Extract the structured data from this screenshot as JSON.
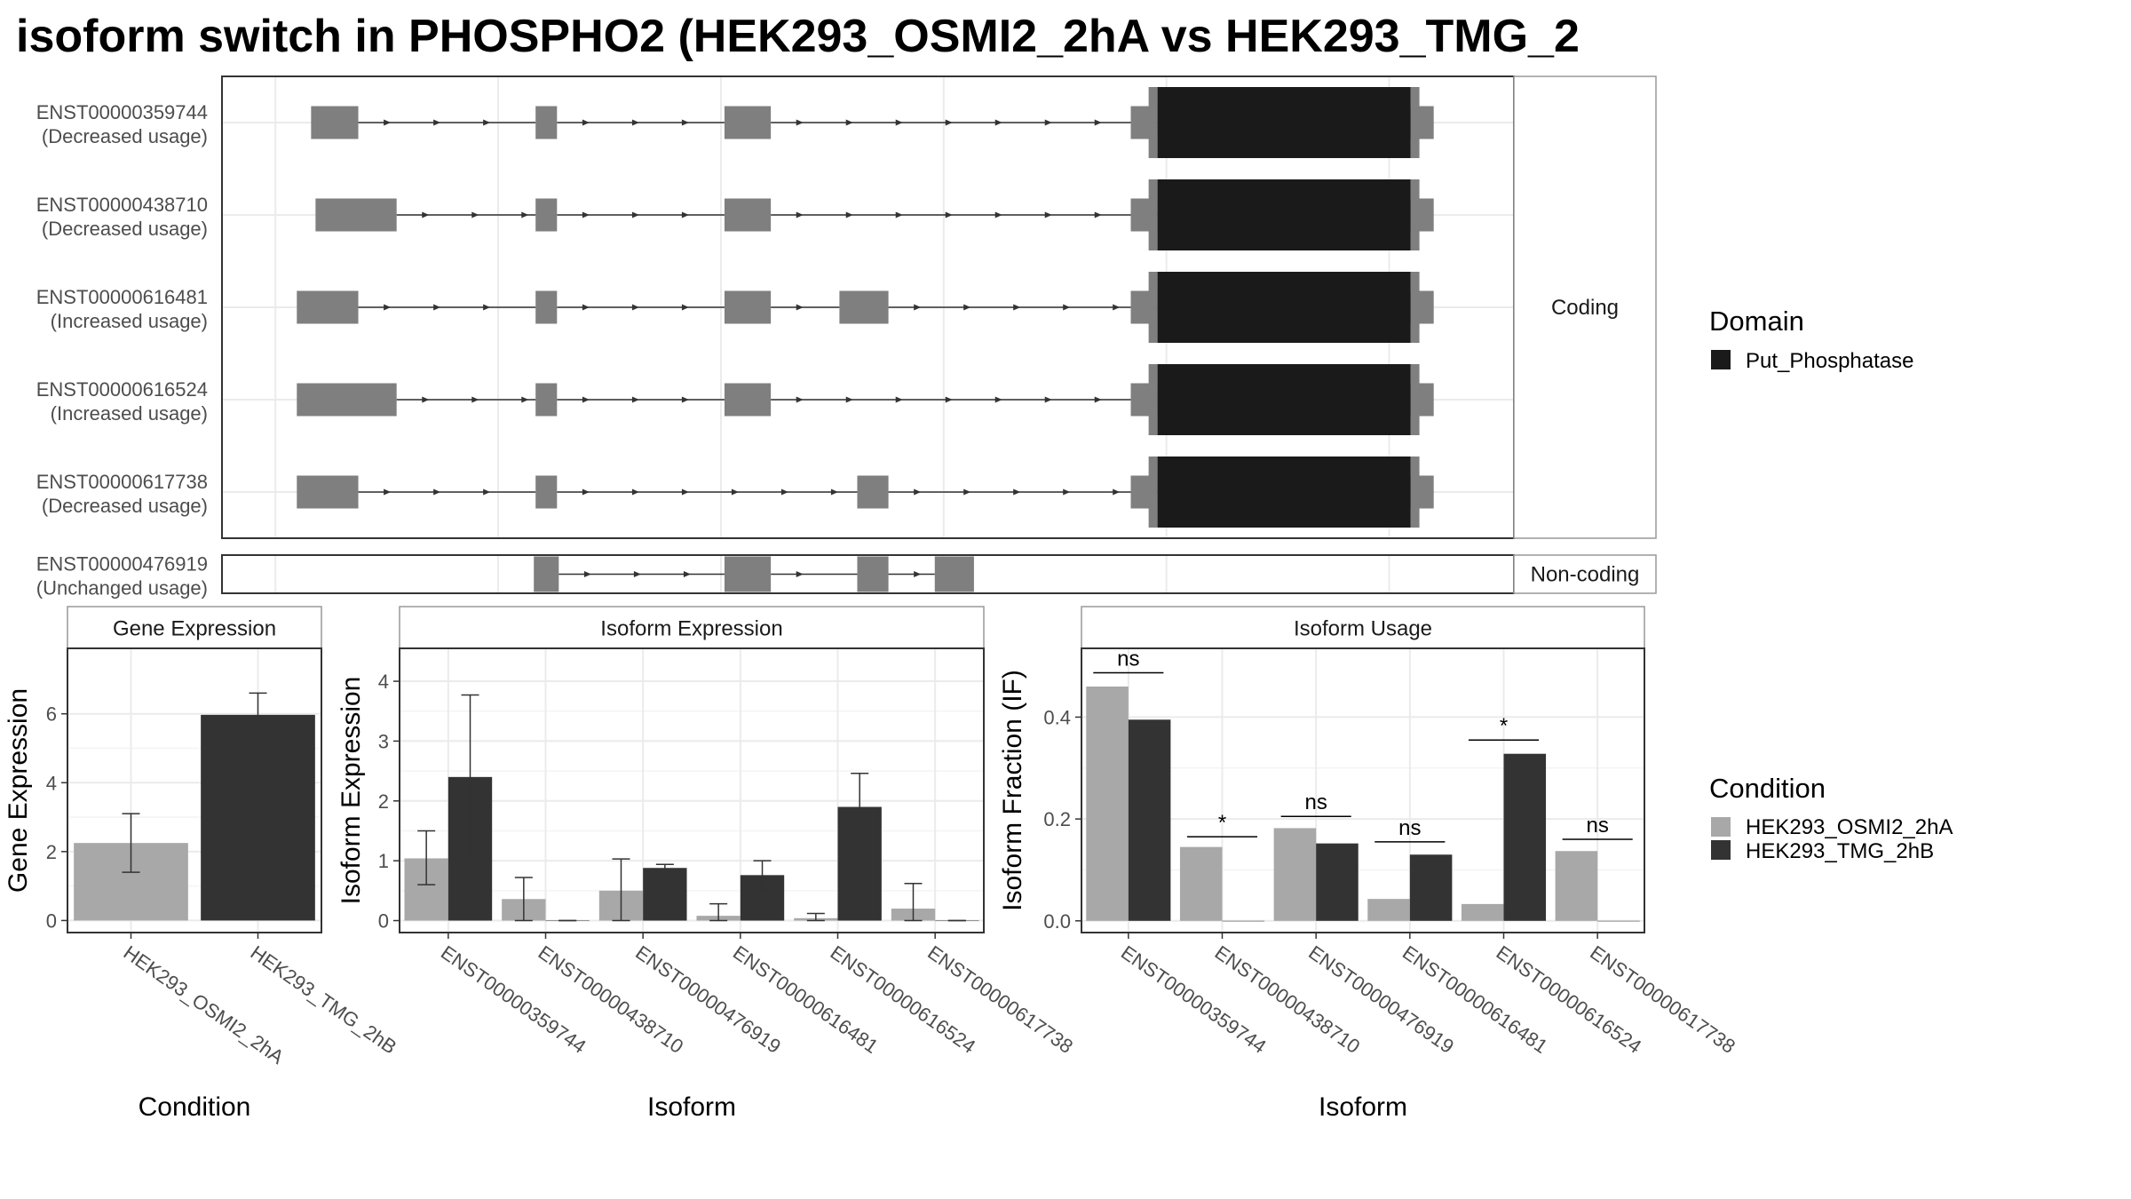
{
  "title": "isoform switch in PHOSPHO2 (HEK293_OSMI2_2hA vs HEK293_TMG_2",
  "colors": {
    "exon": "#7f7f7f",
    "domain": "#1a1a1a",
    "cond1": "#a8a8a8",
    "cond2": "#333333",
    "grid": "#ebebeb",
    "panel_border": "#333333",
    "strip_border": "#999999"
  },
  "chart_data": [
    {
      "type": "gene-structure",
      "facets": [
        {
          "label": "Coding",
          "isoforms": [
            {
              "id": "ENST00000359744",
              "usage": "(Decreased usage)",
              "exons": [
                [
                  1.0,
                  1.53
                ],
                [
                  3.52,
                  3.76
                ],
                [
                  5.64,
                  6.16
                ],
                [
                  10.2,
                  10.5
                ],
                [
                  13.34,
                  13.6
                ]
              ],
              "domain": [
                10.5,
                13.34
              ]
            },
            {
              "id": "ENST00000438710",
              "usage": "(Decreased usage)",
              "exons": [
                [
                  1.05,
                  1.96
                ],
                [
                  3.52,
                  3.76
                ],
                [
                  5.64,
                  6.16
                ],
                [
                  10.2,
                  10.5
                ],
                [
                  13.34,
                  13.6
                ]
              ],
              "domain": [
                10.5,
                13.34
              ]
            },
            {
              "id": "ENST00000616481",
              "usage": "(Increased usage)",
              "exons": [
                [
                  0.84,
                  1.53
                ],
                [
                  3.52,
                  3.76
                ],
                [
                  5.64,
                  6.16
                ],
                [
                  6.93,
                  7.48
                ],
                [
                  10.2,
                  10.5
                ],
                [
                  13.34,
                  13.6
                ]
              ],
              "domain": [
                10.5,
                13.34
              ]
            },
            {
              "id": "ENST00000616524",
              "usage": "(Increased usage)",
              "exons": [
                [
                  0.84,
                  1.96
                ],
                [
                  3.52,
                  3.76
                ],
                [
                  5.64,
                  6.16
                ],
                [
                  10.2,
                  10.5
                ],
                [
                  13.34,
                  13.6
                ]
              ],
              "domain": [
                10.5,
                13.34
              ]
            },
            {
              "id": "ENST00000617738",
              "usage": "(Decreased usage)",
              "exons": [
                [
                  0.84,
                  1.53
                ],
                [
                  3.52,
                  3.76
                ],
                [
                  7.13,
                  7.48
                ],
                [
                  10.2,
                  10.5
                ],
                [
                  13.34,
                  13.6
                ]
              ],
              "domain": [
                10.5,
                13.34
              ]
            }
          ]
        },
        {
          "label": "Non-coding",
          "isoforms": [
            {
              "id": "ENST00000476919",
              "usage": "(Unchanged usage)",
              "exons": [
                [
                  3.5,
                  3.78
                ],
                [
                  5.64,
                  6.16
                ],
                [
                  7.13,
                  7.48
                ],
                [
                  8.0,
                  8.44
                ]
              ],
              "domain": null
            }
          ]
        }
      ],
      "legend": {
        "title": "Domain",
        "entries": [
          "Put_Phosphatase"
        ]
      }
    },
    {
      "type": "bar",
      "strip": "Gene Expression",
      "xlabel": "Condition",
      "ylabel": "Gene Expression",
      "ylim": [
        -0.35,
        7.9
      ],
      "yticks": [
        0,
        2,
        4,
        6
      ],
      "categories": [
        "HEK293_OSMI2_2hA",
        "HEK293_TMG_2hB"
      ],
      "values": [
        2.25,
        5.97
      ],
      "err_low": [
        1.4,
        5.35
      ],
      "err_high": [
        3.1,
        6.6
      ]
    },
    {
      "type": "bar",
      "strip": "Isoform Expression",
      "xlabel": "Isoform",
      "ylabel": "Isoform Expression",
      "ylim": [
        -0.2,
        4.55
      ],
      "yticks": [
        0,
        1,
        2,
        3,
        4
      ],
      "categories": [
        "ENST00000359744",
        "ENST00000438710",
        "ENST00000476919",
        "ENST00000616481",
        "ENST00000616524",
        "ENST00000617738"
      ],
      "series": [
        {
          "name": "HEK293_OSMI2_2hA",
          "values": [
            1.04,
            0.36,
            0.5,
            0.08,
            0.04,
            0.2
          ],
          "err_low": [
            0.6,
            0.0,
            0.0,
            0.0,
            0.0,
            0.0
          ],
          "err_high": [
            1.5,
            0.72,
            1.03,
            0.28,
            0.12,
            0.62
          ]
        },
        {
          "name": "HEK293_TMG_2hB",
          "values": [
            2.4,
            0.0,
            0.88,
            0.76,
            1.9,
            0.0
          ],
          "err_low": [
            1.02,
            0.0,
            0.82,
            0.52,
            1.35,
            0.0
          ],
          "err_high": [
            3.77,
            0.0,
            0.94,
            1.0,
            2.46,
            0.0
          ]
        }
      ]
    },
    {
      "type": "bar",
      "strip": "Isoform Usage",
      "xlabel": "Isoform",
      "ylabel": "Isoform Fraction (IF)",
      "ylim": [
        -0.023,
        0.535
      ],
      "yticks": [
        0.0,
        0.2,
        0.4
      ],
      "ytick_labels": [
        "0.0",
        "0.2",
        "0.4"
      ],
      "categories": [
        "ENST00000359744",
        "ENST00000438710",
        "ENST00000476919",
        "ENST00000616481",
        "ENST00000616524",
        "ENST00000617738"
      ],
      "series": [
        {
          "name": "HEK293_OSMI2_2hA",
          "values": [
            0.46,
            0.145,
            0.182,
            0.043,
            0.033,
            0.137
          ]
        },
        {
          "name": "HEK293_TMG_2hB",
          "values": [
            0.395,
            0.0,
            0.152,
            0.13,
            0.328,
            0.0
          ]
        }
      ],
      "annotations": [
        {
          "category": 0,
          "text": "ns",
          "y": 0.487
        },
        {
          "category": 1,
          "text": "*",
          "y": 0.165
        },
        {
          "category": 2,
          "text": "ns",
          "y": 0.205
        },
        {
          "category": 3,
          "text": "ns",
          "y": 0.155
        },
        {
          "category": 4,
          "text": "*",
          "y": 0.355
        },
        {
          "category": 5,
          "text": "ns",
          "y": 0.16
        }
      ],
      "legend": {
        "title": "Condition",
        "entries": [
          "HEK293_OSMI2_2hA",
          "HEK293_TMG_2hB"
        ]
      }
    }
  ]
}
